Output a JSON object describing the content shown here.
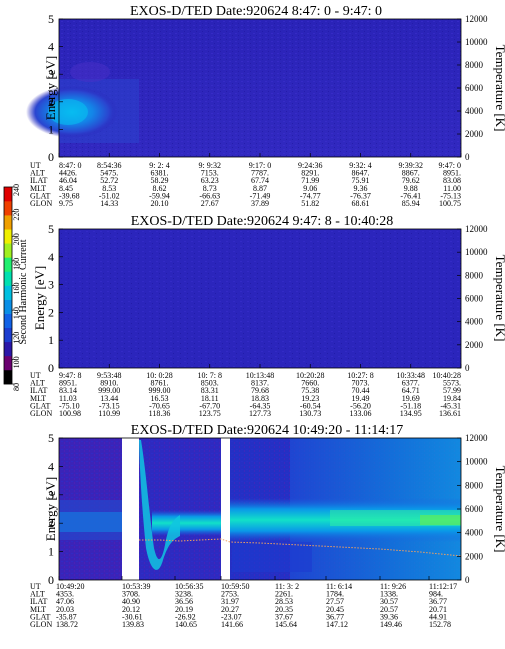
{
  "colorbar": {
    "label": "Second Harmonic Current",
    "ticks": [
      "80",
      "100",
      "120",
      "140",
      "160",
      "180",
      "200",
      "220",
      "240"
    ],
    "colors": [
      "#000000",
      "#6a0070",
      "#2b17a8",
      "#1c3dcf",
      "#1262e6",
      "#0a8fe6",
      "#00c0e0",
      "#00e0b0",
      "#20f070",
      "#a0f020",
      "#f0f000",
      "#f0a000",
      "#f04000",
      "#e00000"
    ]
  },
  "panels": [
    {
      "title": "EXOS-D/TED    Date:920624   8:47: 0 - 9:47: 0",
      "ylabel": "Energy [eV]",
      "y2label": "Temperature [K]",
      "yticks": [
        "0",
        "1",
        "2",
        "3",
        "4",
        "5"
      ],
      "y2ticks": [
        "0",
        "2000",
        "4000",
        "6000",
        "8000",
        "10000",
        "12000"
      ],
      "row_labels": [
        "UT",
        "ALT",
        "ILAT",
        "MLT",
        "GLAT",
        "GLON"
      ],
      "columns": [
        [
          "8:47: 0",
          "4426.",
          "46.04",
          "8.45",
          "-39.68",
          "9.75"
        ],
        [
          "8:54:36",
          "5475.",
          "52.72",
          "8.53",
          "-51.02",
          "14.33"
        ],
        [
          "9: 2: 4",
          "6381.",
          "58.29",
          "8.62",
          "-59.94",
          "20.10"
        ],
        [
          "9: 9:32",
          "7153.",
          "63.23",
          "8.73",
          "-66.63",
          "27.67"
        ],
        [
          "9:17: 0",
          "7787.",
          "67.74",
          "8.87",
          "-71.49",
          "37.89"
        ],
        [
          "9:24:36",
          "8291.",
          "71.99",
          "9.06",
          "-74.77",
          "51.82"
        ],
        [
          "9:32: 4",
          "8647.",
          "75.91",
          "9.36",
          "-76.37",
          "68.61"
        ],
        [
          "9:39:32",
          "8867.",
          "79.62",
          "9.88",
          "-76.41",
          "85.94"
        ],
        [
          "9:47: 0",
          "8951.",
          "83.08",
          "11.00",
          "-75.13",
          "100.75"
        ]
      ]
    },
    {
      "title": "EXOS-D/TED   Date:920624   9:47: 8 - 10:40:28",
      "ylabel": "Energy [eV]",
      "y2label": "Temperature [K]",
      "yticks": [
        "0",
        "1",
        "2",
        "3",
        "4",
        "5"
      ],
      "y2ticks": [
        "0",
        "2000",
        "4000",
        "6000",
        "8000",
        "10000",
        "12000"
      ],
      "row_labels": [
        "UT",
        "ALT",
        "ILAT",
        "MLT",
        "GLAT",
        "GLON"
      ],
      "columns": [
        [
          "9:47: 8",
          "8951.",
          "83.14",
          "11.03",
          "-75.10",
          "100.98"
        ],
        [
          "9:53:48",
          "8910.",
          "999.00",
          "13.44",
          "-73.15",
          "110.99"
        ],
        [
          "10: 0:28",
          "8761.",
          "999.00",
          "16.53",
          "-70.65",
          "118.36"
        ],
        [
          "10: 7: 8",
          "8503.",
          "83.31",
          "18.11",
          "-67.70",
          "123.75"
        ],
        [
          "10:13:48",
          "8137.",
          "79.68",
          "18.83",
          "-64.35",
          "127.73"
        ],
        [
          "10:20:28",
          "7660.",
          "75.38",
          "19.23",
          "-60.54",
          "130.73"
        ],
        [
          "10:27: 8",
          "7073.",
          "70.44",
          "19.49",
          "-56.20",
          "133.06"
        ],
        [
          "10:33:48",
          "6377.",
          "64.71",
          "19.69",
          "-51.18",
          "134.95"
        ],
        [
          "10:40:28",
          "5573.",
          "57.99",
          "19.84",
          "-45.31",
          "136.61"
        ]
      ]
    },
    {
      "title": "EXOS-D/TED   Date:920624   10:49:20 - 11:14:17",
      "ylabel": "Energy [eV]",
      "y2label": "Temperature [K]",
      "yticks": [
        "0",
        "1",
        "2",
        "3",
        "4",
        "5"
      ],
      "y2ticks": [
        "0",
        "2000",
        "4000",
        "6000",
        "8000",
        "10000",
        "12000"
      ],
      "row_labels": [
        "UT",
        "ALT",
        "ILAT",
        "MLT",
        "GLAT",
        "GLON"
      ],
      "columns": [
        [
          "10:49:20",
          "4353.",
          "47.06",
          "20.03",
          "-35.87",
          "138.72"
        ],
        [
          "10:53:39",
          "3708.",
          "40.90",
          "20.12",
          "-30.61",
          "139.83"
        ],
        [
          "10:56:35",
          "3238.",
          "36.56",
          "20.19",
          "-26.92",
          "140.65"
        ],
        [
          "10:59:50",
          "2753.",
          "31.97",
          "20.27",
          "-23.07",
          "141.66"
        ],
        [
          "11: 3: 2",
          "2261.",
          "28.53",
          "20.35",
          "37.67",
          "145.64"
        ],
        [
          "11: 6:14",
          "1784.",
          "27.57",
          "20.45",
          "36.77",
          "147.12"
        ],
        [
          "11: 9:26",
          "1338.",
          "30.57",
          "20.57",
          "39.36",
          "149.46"
        ],
        [
          "11:12:17",
          "984.",
          "36.77",
          "20.71",
          "44.91",
          "152.78"
        ]
      ]
    }
  ],
  "chart_data": [
    {
      "type": "heatmap",
      "title": "EXOS-D/TED    Date:920624   8:47: 0 - 9:47: 0",
      "ylabel": "Energy [eV]",
      "y2label": "Temperature [K]",
      "ylim": [
        0,
        5
      ],
      "y2lim": [
        0,
        12000
      ],
      "x": [
        "8:47: 0",
        "8:54:36",
        "9: 2: 4",
        "9: 9:32",
        "9:17: 0",
        "9:24:36",
        "9:32: 4",
        "9:39:32",
        "9:47: 0"
      ],
      "colorbar_label": "Second Harmonic Current",
      "colorbar_range": [
        80,
        240
      ],
      "features": [
        {
          "x_range": [
            0.0,
            0.14
          ],
          "y_range": [
            0.6,
            2.4
          ],
          "level": "high"
        },
        {
          "x_range": [
            0.0,
            0.12
          ],
          "y_range": [
            1.0,
            2.0
          ],
          "level": "very high"
        }
      ]
    },
    {
      "type": "heatmap",
      "title": "EXOS-D/TED   Date:920624   9:47: 8 - 10:40:28",
      "ylabel": "Energy [eV]",
      "y2label": "Temperature [K]",
      "ylim": [
        0,
        5
      ],
      "y2lim": [
        0,
        12000
      ],
      "x": [
        "9:47: 8",
        "9:53:48",
        "10: 0:28",
        "10: 7: 8",
        "10:13:48",
        "10:20:28",
        "10:27: 8",
        "10:33:48",
        "10:40:28"
      ],
      "colorbar_label": "Second Harmonic Current",
      "colorbar_range": [
        80,
        240
      ],
      "features": []
    },
    {
      "type": "heatmap",
      "title": "EXOS-D/TED   Date:920624   10:49:20 - 11:14:17",
      "ylabel": "Energy [eV]",
      "y2label": "Temperature [K]",
      "ylim": [
        0,
        5
      ],
      "y2lim": [
        0,
        12000
      ],
      "x": [
        "10:49:20",
        "10:53:39",
        "10:56:35",
        "10:59:50",
        "11: 3: 2",
        "11: 6:14",
        "11: 9:26",
        "11:12:17"
      ],
      "colorbar_label": "Second Harmonic Current",
      "colorbar_range": [
        80,
        240
      ],
      "data_gaps": [
        [
          0.21,
          0.25
        ],
        [
          0.34,
          0.36
        ]
      ],
      "temperature_trace_K": [
        3600,
        3500,
        3300,
        3400,
        3200,
        3000,
        2800,
        2600
      ]
    }
  ]
}
